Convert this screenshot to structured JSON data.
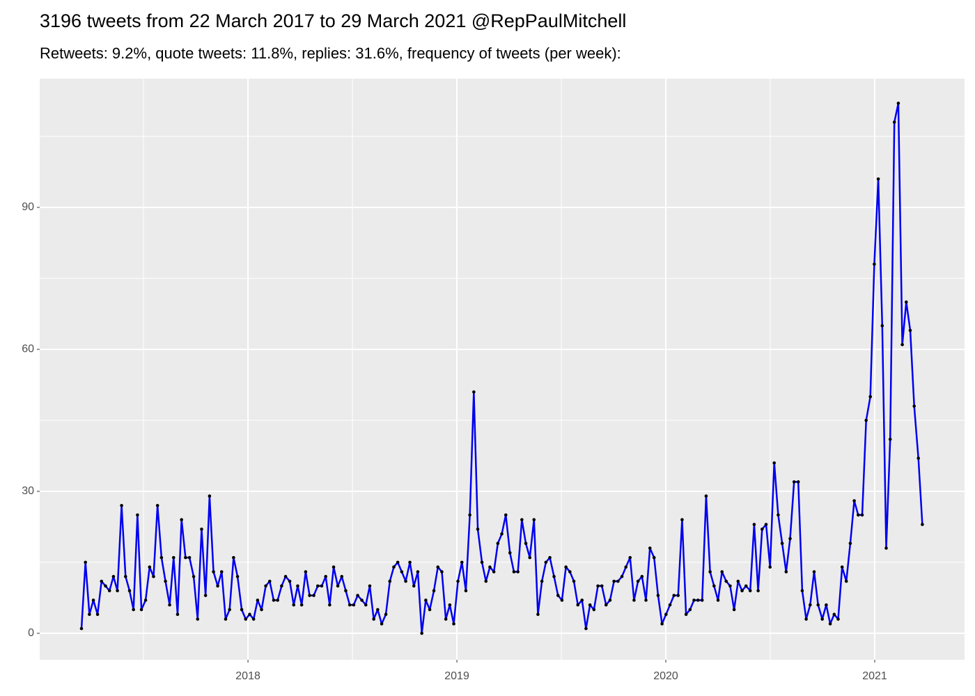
{
  "chart_data": {
    "type": "line",
    "title": "3196 tweets from 22 March 2017 to 29 March 2021 @RepPaulMitchell",
    "subtitle": "Retweets: 9.2%, quote tweets: 11.8%, replies: 31.6%, frequency of tweets (per week):",
    "x": [
      2017.203,
      2017.222,
      2017.241,
      2017.26,
      2017.28,
      2017.299,
      2017.318,
      2017.337,
      2017.356,
      2017.375,
      2017.395,
      2017.414,
      2017.433,
      2017.452,
      2017.471,
      2017.49,
      2017.51,
      2017.529,
      2017.548,
      2017.567,
      2017.586,
      2017.605,
      2017.625,
      2017.644,
      2017.663,
      2017.682,
      2017.701,
      2017.72,
      2017.74,
      2017.759,
      2017.778,
      2017.797,
      2017.816,
      2017.835,
      2017.855,
      2017.874,
      2017.893,
      2017.912,
      2017.931,
      2017.95,
      2017.97,
      2017.989,
      2018.008,
      2018.027,
      2018.046,
      2018.065,
      2018.085,
      2018.104,
      2018.123,
      2018.142,
      2018.161,
      2018.18,
      2018.2,
      2018.219,
      2018.238,
      2018.257,
      2018.276,
      2018.295,
      2018.315,
      2018.334,
      2018.353,
      2018.372,
      2018.391,
      2018.41,
      2018.43,
      2018.449,
      2018.468,
      2018.487,
      2018.506,
      2018.525,
      2018.545,
      2018.564,
      2018.583,
      2018.602,
      2018.621,
      2018.64,
      2018.66,
      2018.679,
      2018.698,
      2018.717,
      2018.736,
      2018.755,
      2018.775,
      2018.794,
      2018.813,
      2018.832,
      2018.851,
      2018.87,
      2018.89,
      2018.909,
      2018.928,
      2018.947,
      2018.966,
      2018.985,
      2019.005,
      2019.024,
      2019.043,
      2019.062,
      2019.081,
      2019.1,
      2019.12,
      2019.139,
      2019.158,
      2019.177,
      2019.196,
      2019.215,
      2019.234,
      2019.254,
      2019.273,
      2019.292,
      2019.311,
      2019.33,
      2019.349,
      2019.369,
      2019.388,
      2019.407,
      2019.426,
      2019.445,
      2019.465,
      2019.484,
      2019.503,
      2019.522,
      2019.541,
      2019.56,
      2019.579,
      2019.599,
      2019.618,
      2019.637,
      2019.656,
      2019.675,
      2019.694,
      2019.714,
      2019.733,
      2019.752,
      2019.771,
      2019.79,
      2019.809,
      2019.829,
      2019.848,
      2019.867,
      2019.886,
      2019.905,
      2019.924,
      2019.944,
      2019.963,
      2019.982,
      2020.001,
      2020.02,
      2020.039,
      2020.059,
      2020.078,
      2020.097,
      2020.116,
      2020.135,
      2020.154,
      2020.174,
      2020.193,
      2020.212,
      2020.231,
      2020.25,
      2020.269,
      2020.289,
      2020.308,
      2020.327,
      2020.346,
      2020.365,
      2020.384,
      2020.404,
      2020.423,
      2020.442,
      2020.461,
      2020.48,
      2020.499,
      2020.519,
      2020.538,
      2020.557,
      2020.576,
      2020.595,
      2020.614,
      2020.634,
      2020.653,
      2020.672,
      2020.691,
      2020.71,
      2020.729,
      2020.749,
      2020.768,
      2020.787,
      2020.806,
      2020.825,
      2020.844,
      2020.864,
      2020.883,
      2020.902,
      2020.921,
      2020.94,
      2020.959,
      2020.979,
      2020.998,
      2021.017,
      2021.036,
      2021.055,
      2021.074,
      2021.094,
      2021.113,
      2021.132,
      2021.151,
      2021.17,
      2021.189,
      2021.209,
      2021.228
    ],
    "values": [
      1,
      15,
      4,
      7,
      4,
      11,
      10,
      9,
      12,
      9,
      27,
      12,
      9,
      5,
      25,
      5,
      7,
      14,
      12,
      27,
      16,
      11,
      6,
      16,
      4,
      24,
      16,
      16,
      12,
      3,
      22,
      8,
      29,
      13,
      10,
      13,
      3,
      5,
      16,
      12,
      5,
      3,
      4,
      3,
      7,
      5,
      10,
      11,
      7,
      7,
      10,
      12,
      11,
      6,
      10,
      6,
      13,
      8,
      8,
      10,
      10,
      12,
      6,
      14,
      10,
      12,
      9,
      6,
      6,
      8,
      7,
      6,
      10,
      3,
      5,
      2,
      4,
      11,
      14,
      15,
      13,
      11,
      15,
      10,
      13,
      0,
      7,
      5,
      9,
      14,
      13,
      3,
      6,
      2,
      11,
      15,
      9,
      25,
      51,
      22,
      15,
      11,
      14,
      13,
      19,
      21,
      25,
      17,
      13,
      13,
      24,
      19,
      16,
      24,
      4,
      11,
      15,
      16,
      12,
      8,
      7,
      14,
      13,
      11,
      6,
      7,
      1,
      6,
      5,
      10,
      10,
      6,
      7,
      11,
      11,
      12,
      14,
      16,
      7,
      11,
      12,
      7,
      18,
      16,
      8,
      2,
      4,
      6,
      8,
      8,
      24,
      4,
      5,
      7,
      7,
      7,
      29,
      13,
      10,
      7,
      13,
      11,
      10,
      5,
      11,
      9,
      10,
      9,
      23,
      9,
      22,
      23,
      14,
      36,
      25,
      19,
      13,
      20,
      32,
      32,
      9,
      3,
      6,
      13,
      6,
      3,
      6,
      2,
      4,
      3,
      14,
      11,
      19,
      28,
      25,
      25,
      45,
      50,
      78,
      96,
      65,
      18,
      41,
      108,
      112,
      61,
      70,
      64,
      48,
      37,
      23
    ],
    "color": "#0000ee",
    "marker_color": "#000000",
    "xlim": [
      2017.003,
      2021.43
    ],
    "xticks": [
      2018,
      2019,
      2020,
      2021
    ],
    "ylim": [
      -5.6,
      117.2
    ],
    "yticks": [
      0,
      30,
      60,
      90
    ],
    "grid": true
  }
}
